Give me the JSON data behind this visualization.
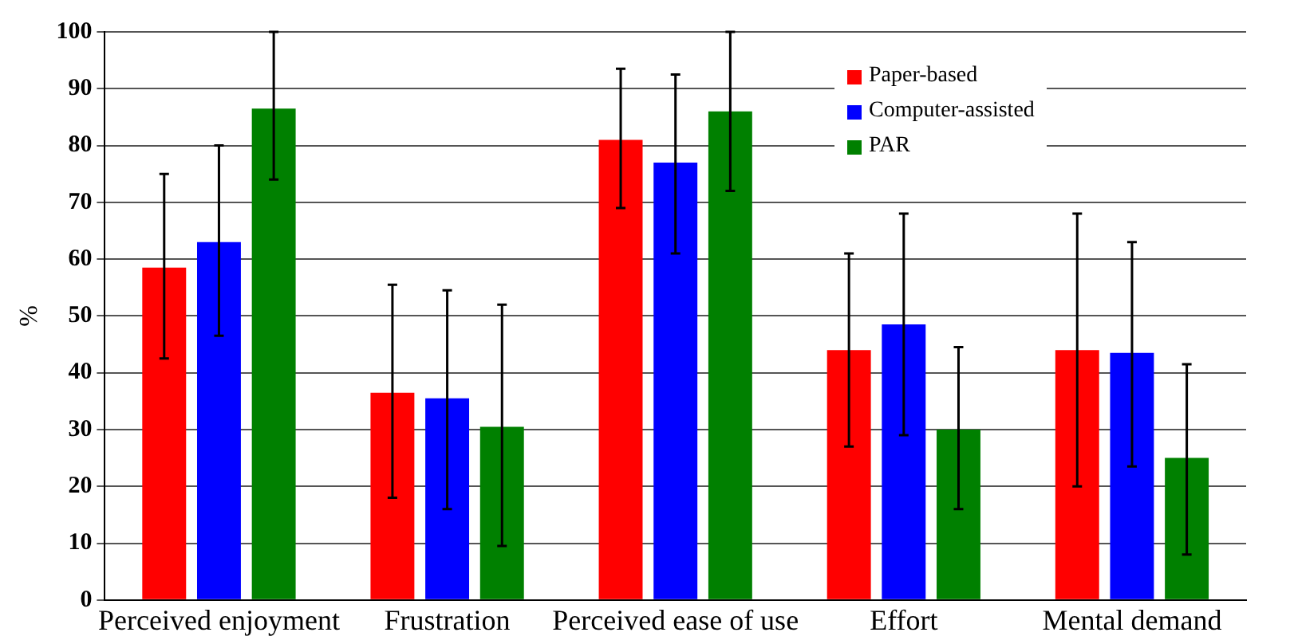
{
  "chart_data": {
    "type": "bar",
    "ylabel": "%",
    "categories": [
      "Perceived enjoyment",
      "Frustration",
      "Perceived ease of use",
      "Effort",
      "Mental demand"
    ],
    "series": [
      {
        "name": "Paper-based",
        "color": "#ff0000",
        "values": [
          58.5,
          36.5,
          81,
          44,
          44
        ],
        "errors": [
          [
            42.5,
            75
          ],
          [
            18,
            55.5
          ],
          [
            69,
            93.5
          ],
          [
            27,
            61
          ],
          [
            20,
            68
          ]
        ]
      },
      {
        "name": "Computer-assisted",
        "color": "#0000ff",
        "values": [
          63,
          35.5,
          77,
          48.5,
          43.5
        ],
        "errors": [
          [
            46.5,
            80
          ],
          [
            16,
            54.5
          ],
          [
            61,
            92.5
          ],
          [
            29,
            68
          ],
          [
            23.5,
            63
          ]
        ]
      },
      {
        "name": "PAR",
        "color": "#008000",
        "values": [
          86.5,
          30.5,
          86,
          30,
          25
        ],
        "errors": [
          [
            74,
            100
          ],
          [
            9.5,
            52
          ],
          [
            72,
            100
          ],
          [
            16,
            44.5
          ],
          [
            8,
            41.5
          ]
        ]
      }
    ],
    "ylim": [
      0,
      100
    ],
    "yticks": [
      0,
      10,
      20,
      30,
      40,
      50,
      60,
      70,
      80,
      90,
      100
    ],
    "grid": "y",
    "legend": "top right"
  }
}
